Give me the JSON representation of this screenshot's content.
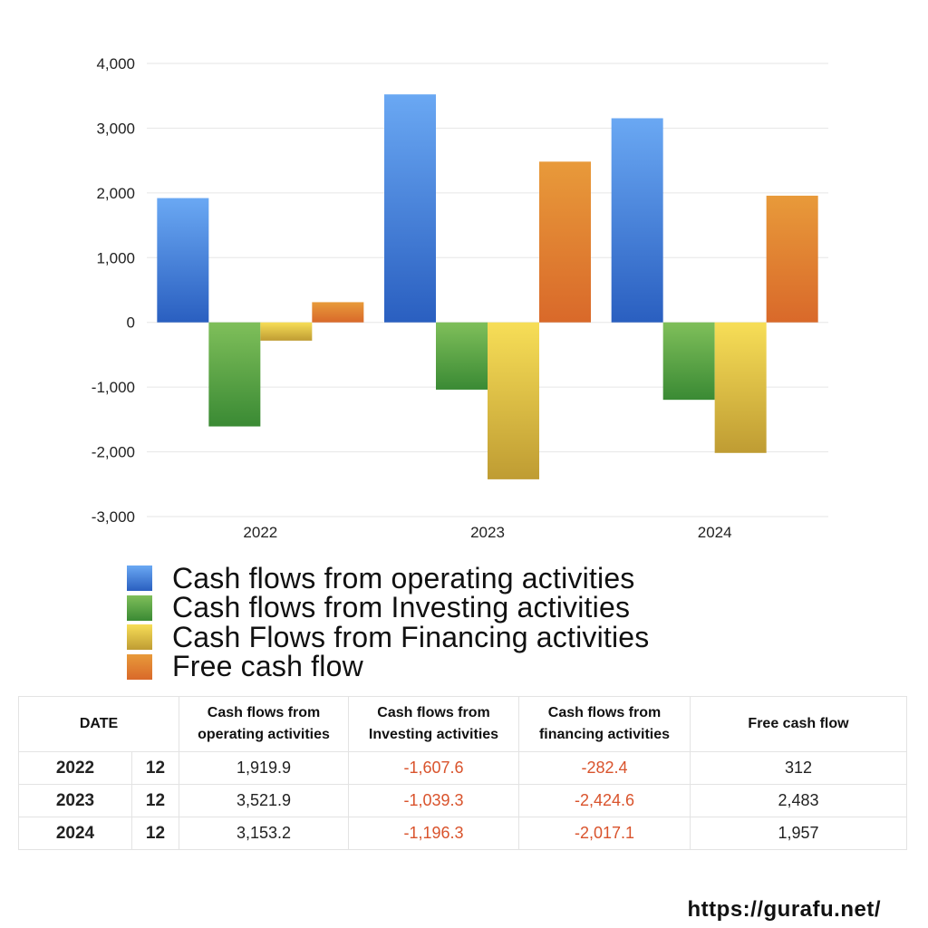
{
  "chart_data": {
    "type": "bar",
    "categories": [
      "2022",
      "2023",
      "2024"
    ],
    "series": [
      {
        "name": "Cash flows from operating activities",
        "values": [
          1919.9,
          3521.9,
          3153.2
        ],
        "gradient": [
          "#6aa8f3",
          "#2a5fc0"
        ]
      },
      {
        "name": "Cash flows from Investing activities",
        "values": [
          -1607.6,
          -1039.3,
          -1196.3
        ],
        "gradient": [
          "#7fbf5a",
          "#3a8a34"
        ]
      },
      {
        "name": "Cash Flows from Financing activities",
        "values": [
          -282.4,
          -2424.6,
          -2017.1
        ],
        "gradient": [
          "#f7de57",
          "#bf9c33"
        ]
      },
      {
        "name": "Free cash flow",
        "values": [
          312,
          2483,
          1957
        ],
        "gradient": [
          "#e89a3a",
          "#d9692a"
        ]
      }
    ],
    "ylim": [
      -3000,
      4000
    ],
    "yticks": [
      4000,
      3000,
      2000,
      1000,
      0,
      -1000,
      -2000,
      -3000
    ],
    "ytick_labels": [
      "4,000",
      "3,000",
      "2,000",
      "1,000",
      "0",
      "-1,000",
      "-2,000",
      "-3,000"
    ],
    "title": "",
    "xlabel": "",
    "ylabel": "",
    "legend_position": "bottom"
  },
  "table": {
    "headers": {
      "date": "DATE",
      "operating": [
        "Cash flows from",
        "operating activities"
      ],
      "investing": [
        "Cash flows from",
        "Investing activities"
      ],
      "financing": [
        "Cash flows from",
        "financing activities"
      ],
      "free": "Free cash flow"
    },
    "rows": [
      {
        "year": "2022",
        "month": "12",
        "operating": "1,919.9",
        "investing": "-1,607.6",
        "financing": "-282.4",
        "free": "312"
      },
      {
        "year": "2023",
        "month": "12",
        "operating": "3,521.9",
        "investing": "-1,039.3",
        "financing": "-2,424.6",
        "free": "2,483"
      },
      {
        "year": "2024",
        "month": "12",
        "operating": "3,153.2",
        "investing": "-1,196.3",
        "financing": "-2,017.1",
        "free": "1,957"
      }
    ]
  },
  "footer": {
    "url": "https://gurafu.net/"
  }
}
